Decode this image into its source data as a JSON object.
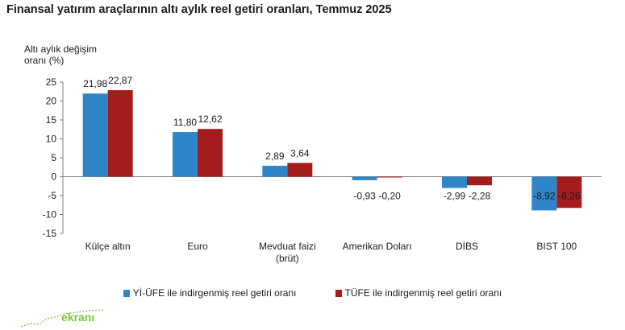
{
  "colors": {
    "series1": "#2e86c8",
    "series2": "#a51c1c",
    "axis": "#808080",
    "watermark": "#7cc242"
  },
  "watermark": {
    "text": "ekranı"
  },
  "chart_data": {
    "type": "bar",
    "title": "Finansal yatırım araçlarının altı aylık reel getiri oranları, Temmuz 2025",
    "ylabel": [
      "Altı aylık değişim",
      "oranı (%)"
    ],
    "xlabel": "",
    "ylim": [
      -15,
      25
    ],
    "yticks": [
      25,
      20,
      15,
      10,
      5,
      0,
      -5,
      -10,
      -15
    ],
    "grid": false,
    "legend_position": "bottom",
    "categories": [
      [
        "Külçe altın"
      ],
      [
        "Euro"
      ],
      [
        "Mevduat faizi",
        "(brüt)"
      ],
      [
        "Amerikan Doları"
      ],
      [
        "DİBS"
      ],
      [
        "BIST 100"
      ]
    ],
    "series": [
      {
        "name": "Yİ-ÜFE ile indirgenmiş reel getiri oranı",
        "values": [
          21.98,
          11.8,
          2.89,
          -0.93,
          -2.99,
          -8.92
        ],
        "labels": [
          "21,98",
          "11,80",
          "2,89",
          "-0,93",
          "-2,99",
          "-8,92"
        ]
      },
      {
        "name": "TÜFE ile indirgenmiş reel getiri oranı",
        "values": [
          22.87,
          12.62,
          3.64,
          -0.2,
          -2.28,
          -8.26
        ],
        "labels": [
          "22,87",
          "12,62",
          "3,64",
          "-0,20",
          "-2,28",
          "-8,26"
        ]
      }
    ]
  }
}
